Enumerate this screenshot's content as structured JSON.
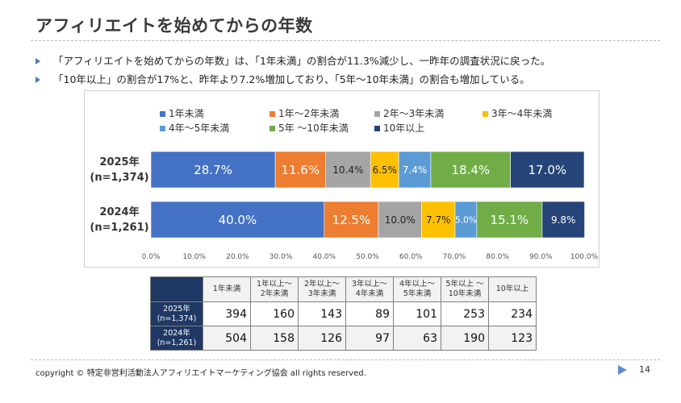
{
  "title": "アフィリエイトを始めてからの年数",
  "bullets": [
    "「アフィリエイトを始めてからの年数」は、「1年未満」の割合が11.3%減少し、一昨年の調査状況に戻った。",
    "「10年以上」の割合が17%と、昨年より7.2%増加しており、「5年〜10年未満」の割合も増加している。"
  ],
  "chart_data": {
    "type": "bar",
    "orientation": "horizontal",
    "stacked": "percent",
    "categories": [
      "2025年\n(n=1,374)",
      "2024年\n(n=1,261)"
    ],
    "series": [
      {
        "name": "1年未満",
        "color": "#4472c4",
        "values": [
          28.7,
          40.0
        ],
        "labels": [
          "28.7%",
          "40.0%"
        ]
      },
      {
        "name": "1年〜2年未満",
        "color": "#ed7d31",
        "values": [
          11.6,
          12.5
        ],
        "labels": [
          "11.6%",
          "12.5%"
        ]
      },
      {
        "name": "2年〜3年未満",
        "color": "#a5a5a5",
        "values": [
          10.4,
          10.0
        ],
        "labels": [
          "10.4%",
          "10.0%"
        ]
      },
      {
        "name": "3年〜4年未満",
        "color": "#ffc000",
        "values": [
          6.5,
          7.7
        ],
        "labels": [
          "6.5%",
          "7.7%"
        ]
      },
      {
        "name": "4年〜5年未満",
        "color": "#5b9bd5",
        "values": [
          7.4,
          5.0
        ],
        "labels": [
          "7.4%",
          "5.0%"
        ]
      },
      {
        "name": "5年 〜10年未満",
        "color": "#70ad47",
        "values": [
          18.4,
          15.1
        ],
        "labels": [
          "18.4%",
          "15.1%"
        ]
      },
      {
        "name": "10年以上",
        "color": "#264478",
        "values": [
          17.0,
          9.8
        ],
        "labels": [
          "17.0%",
          "9.8%"
        ]
      }
    ],
    "xlim": [
      0,
      100
    ],
    "xticks": [
      "0.0%",
      "10.0%",
      "20.0%",
      "30.0%",
      "40.0%",
      "50.0%",
      "60.0%",
      "70.0%",
      "80.0%",
      "90.0%",
      "100.0%"
    ],
    "legend_position": "top",
    "grid": false
  },
  "table": {
    "headers": [
      "1年未満",
      "1年以上〜\n2年未満",
      "2年以上〜\n3年未満",
      "3年以上〜\n4年未満",
      "4年以上〜\n5年未満",
      "5年以上 〜\n10年未満",
      "10年以上"
    ],
    "rows": [
      {
        "label": "2025年\n(n=1,374)",
        "values": [
          "394",
          "160",
          "143",
          "89",
          "101",
          "253",
          "234"
        ]
      },
      {
        "label": "2024年\n(n=1,261)",
        "values": [
          "504",
          "158",
          "126",
          "97",
          "63",
          "190",
          "123"
        ]
      }
    ]
  },
  "footer": {
    "copyright": "copyright © 特定非営利活動法人アフィリエイトマーケティング協会 all rights reserved.",
    "page_number": "14"
  }
}
